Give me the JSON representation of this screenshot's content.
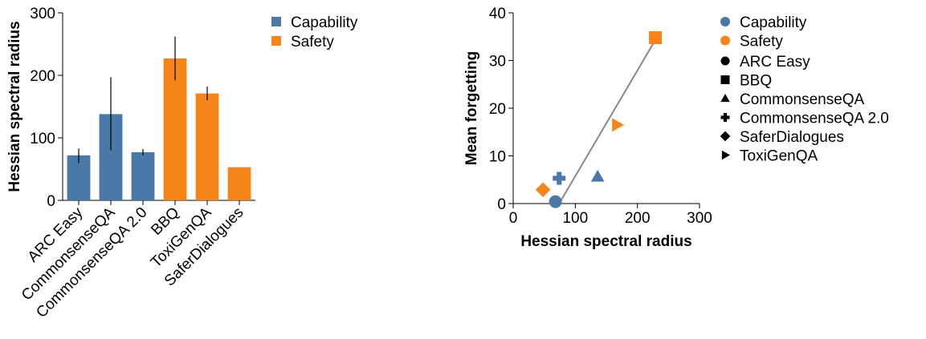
{
  "colors": {
    "capability": "#4c78a8",
    "safety": "#f58518",
    "fit_line": "#888888",
    "error_bar": "#000000"
  },
  "chart_data": [
    {
      "type": "bar",
      "categories": [
        "ARC Easy",
        "CommonsenseQA",
        "CommonsenseQA 2.0",
        "BBQ",
        "ToxiGenQA",
        "SaferDialogues"
      ],
      "values": [
        72,
        138,
        77,
        227,
        171,
        53
      ],
      "error_low": [
        60,
        80,
        72,
        192,
        160,
        null
      ],
      "error_high": [
        83,
        197,
        82,
        262,
        182,
        null
      ],
      "groups": [
        "Capability",
        "Capability",
        "Capability",
        "Safety",
        "Safety",
        "Safety"
      ],
      "ylabel": "Hessian spectral radius",
      "xlabel": "",
      "ylim": [
        0,
        300
      ],
      "yticks": [
        0,
        100,
        200,
        300
      ],
      "legend": {
        "placement": "right",
        "entries": [
          "Capability",
          "Safety"
        ]
      },
      "grid": false
    },
    {
      "type": "scatter",
      "xlabel": "Hessian spectral radius",
      "ylabel": "Mean forgetting",
      "xlim": [
        0,
        300
      ],
      "ylim": [
        0,
        40
      ],
      "xticks": [
        0,
        100,
        200,
        300
      ],
      "yticks": [
        0,
        10,
        20,
        30,
        40
      ],
      "points": [
        {
          "dataset": "ARC Easy",
          "group": "Capability",
          "marker": "circle",
          "x": 68,
          "y": 0.4
        },
        {
          "dataset": "BBQ",
          "group": "Safety",
          "marker": "square",
          "x": 229,
          "y": 34.8
        },
        {
          "dataset": "CommonsenseQA",
          "group": "Capability",
          "marker": "triangle",
          "x": 136,
          "y": 5.6
        },
        {
          "dataset": "CommonsenseQA 2.0",
          "group": "Capability",
          "marker": "cross",
          "x": 74,
          "y": 5.3
        },
        {
          "dataset": "SaferDialogues",
          "group": "Safety",
          "marker": "diamond",
          "x": 48,
          "y": 2.9
        },
        {
          "dataset": "ToxiGenQA",
          "group": "Safety",
          "marker": "triangle-right",
          "x": 167,
          "y": 16.5
        }
      ],
      "fit_line": {
        "x": [
          74,
          232
        ],
        "y": [
          0,
          35
        ]
      },
      "legend": {
        "placement": "right",
        "color_entries": [
          "Capability",
          "Safety"
        ],
        "shape_entries": [
          {
            "label": "ARC Easy",
            "marker": "circle"
          },
          {
            "label": "BBQ",
            "marker": "square"
          },
          {
            "label": "CommonsenseQA",
            "marker": "triangle"
          },
          {
            "label": "CommonsenseQA 2.0",
            "marker": "cross"
          },
          {
            "label": "SaferDialogues",
            "marker": "diamond"
          },
          {
            "label": "ToxiGenQA",
            "marker": "triangle-right"
          }
        ]
      },
      "grid": false
    }
  ]
}
